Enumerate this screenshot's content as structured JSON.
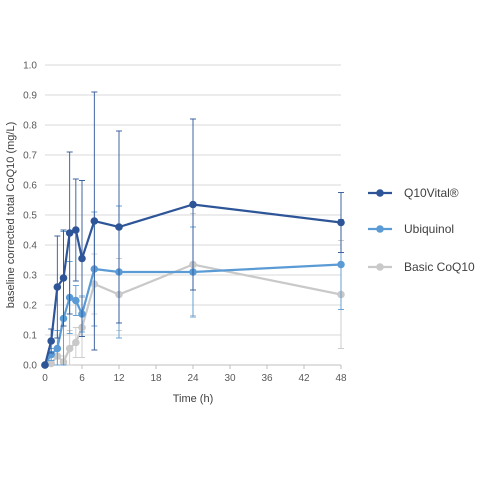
{
  "chart_data": {
    "type": "line",
    "xlabel": "Time (h)",
    "ylabel": "baseline corrected total CoQ10 (mg/L)",
    "xlim": [
      0,
      48
    ],
    "ylim": [
      0,
      1.0
    ],
    "x_ticks": [
      0,
      6,
      12,
      18,
      24,
      30,
      36,
      42,
      48
    ],
    "y_ticks": [
      "0.0",
      "0.1",
      "0.2",
      "0.3",
      "0.4",
      "0.5",
      "0.6",
      "0.7",
      "0.8",
      "0.9",
      "1.0"
    ],
    "grid": "horizontal",
    "legend_position": "right",
    "series": [
      {
        "name": "Q10Vital®",
        "color": "#2e5597",
        "points": [
          {
            "x": 0,
            "y": 0.0,
            "err": 0.0
          },
          {
            "x": 1,
            "y": 0.08,
            "err": 0.04
          },
          {
            "x": 2,
            "y": 0.26,
            "err": 0.17
          },
          {
            "x": 3,
            "y": 0.29,
            "err": 0.16
          },
          {
            "x": 4,
            "y": 0.44,
            "err": 0.27
          },
          {
            "x": 5,
            "y": 0.45,
            "err": 0.17
          },
          {
            "x": 6,
            "y": 0.355,
            "err": 0.26
          },
          {
            "x": 8,
            "y": 0.48,
            "err": 0.43
          },
          {
            "x": 12,
            "y": 0.46,
            "err": 0.32
          },
          {
            "x": 24,
            "y": 0.535,
            "err": 0.285
          },
          {
            "x": 48,
            "y": 0.475,
            "err": 0.1
          }
        ]
      },
      {
        "name": "Ubiquinol",
        "color": "#5b9bd5",
        "points": [
          {
            "x": 0,
            "y": 0.0,
            "err": 0.0
          },
          {
            "x": 1,
            "y": 0.035,
            "err": 0.02
          },
          {
            "x": 2,
            "y": 0.055,
            "err": 0.06
          },
          {
            "x": 3,
            "y": 0.155,
            "err": 0.29
          },
          {
            "x": 4,
            "y": 0.225,
            "err": 0.12
          },
          {
            "x": 5,
            "y": 0.215,
            "err": 0.05
          },
          {
            "x": 6,
            "y": 0.17,
            "err": 0.06
          },
          {
            "x": 8,
            "y": 0.32,
            "err": 0.19
          },
          {
            "x": 12,
            "y": 0.31,
            "err": 0.22
          },
          {
            "x": 24,
            "y": 0.31,
            "err": 0.15
          },
          {
            "x": 48,
            "y": 0.335,
            "err": 0.15
          }
        ]
      },
      {
        "name": "Basic CoQ10",
        "color": "#c9c9c9",
        "points": [
          {
            "x": 0,
            "y": 0.0,
            "err": 0.0
          },
          {
            "x": 1,
            "y": 0.005,
            "err": 0.02
          },
          {
            "x": 2,
            "y": 0.03,
            "err": 0.03
          },
          {
            "x": 3,
            "y": 0.01,
            "err": 0.02
          },
          {
            "x": 4,
            "y": 0.055,
            "err": 0.06
          },
          {
            "x": 5,
            "y": 0.075,
            "err": 0.05
          },
          {
            "x": 6,
            "y": 0.125,
            "err": 0.1
          },
          {
            "x": 8,
            "y": 0.27,
            "err": 0.1
          },
          {
            "x": 12,
            "y": 0.235,
            "err": 0.12
          },
          {
            "x": 24,
            "y": 0.335,
            "err": 0.17
          },
          {
            "x": 48,
            "y": 0.235,
            "err": 0.18
          }
        ]
      }
    ]
  }
}
